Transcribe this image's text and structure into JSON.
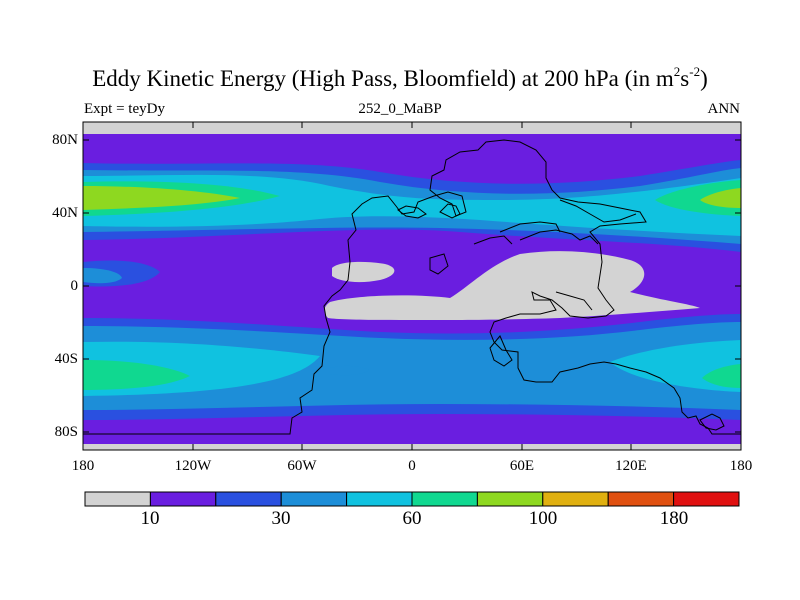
{
  "title": {
    "main": "Eddy Kinetic Energy (High Pass, Bloomfield) at 200 hPa (in m",
    "sup1": "2",
    "mid": "s",
    "sup2": "-2",
    "close": ")"
  },
  "subtitle": {
    "left": "Expt = teyDy",
    "center": "252_0_MaBP",
    "right": "ANN"
  },
  "map": {
    "lat_labels": [
      "80N",
      "40N",
      "0",
      "40S",
      "80S"
    ],
    "lon_labels": [
      "180",
      "120W",
      "60W",
      "0",
      "60E",
      "120E",
      "180"
    ]
  },
  "colorbar": {
    "colors": [
      "#d3d3d3",
      "#6a1ee0",
      "#2a50e0",
      "#1d8ed8",
      "#10c2e0",
      "#10d890",
      "#8ed820",
      "#e0b010",
      "#e05010",
      "#e01010"
    ],
    "labels": [
      "10",
      "30",
      "60",
      "100",
      "180"
    ]
  }
}
